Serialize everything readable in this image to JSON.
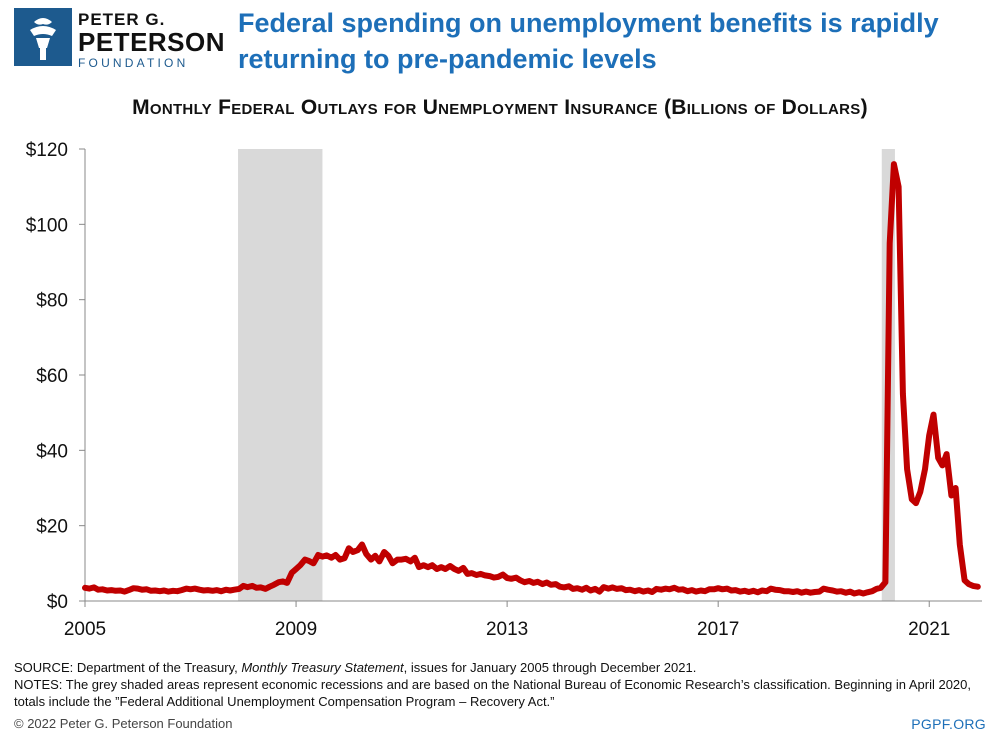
{
  "logo": {
    "line1": "PETER G.",
    "line2": "PETERSON",
    "line3": "FOUNDATION",
    "icon": "torch-icon",
    "color": "#1d5a8e"
  },
  "headline": "Federal spending on unemployment benefits is rapidly returning to pre-pandemic levels",
  "chart_data": {
    "type": "line",
    "title": "Monthly Federal Outlays for Unemployment Insurance (Billions of Dollars)",
    "xlabel": "",
    "ylabel": "",
    "xlim": [
      2005.0,
      2022.0
    ],
    "ylim": [
      0,
      120
    ],
    "x_ticks": [
      2005,
      2009,
      2013,
      2017,
      2021
    ],
    "y_ticks": [
      0,
      20,
      40,
      60,
      80,
      100,
      120
    ],
    "y_tick_labels": [
      "$0",
      "$20",
      "$40",
      "$60",
      "$80",
      "$100",
      "$120"
    ],
    "grid": false,
    "line_color": "#c00000",
    "shading_color": "#d9d9d9",
    "recessions": [
      [
        2007.9,
        2009.5
      ],
      [
        2020.1,
        2020.35
      ]
    ],
    "series": [
      {
        "x": [
          2005.0,
          2005.08,
          2005.17,
          2005.25,
          2005.33,
          2005.42,
          2005.5,
          2005.58,
          2005.67,
          2005.75,
          2005.83,
          2005.92,
          2006.0,
          2006.08,
          2006.17,
          2006.25,
          2006.33,
          2006.42,
          2006.5,
          2006.58,
          2006.67,
          2006.75,
          2006.83,
          2006.92,
          2007.0,
          2007.08,
          2007.17,
          2007.25,
          2007.33,
          2007.42,
          2007.5,
          2007.58,
          2007.67,
          2007.75,
          2007.83,
          2007.92,
          2008.0,
          2008.08,
          2008.17,
          2008.25,
          2008.33,
          2008.42,
          2008.5,
          2008.58,
          2008.67,
          2008.75,
          2008.83,
          2008.92,
          2009.0,
          2009.08,
          2009.17,
          2009.25,
          2009.33,
          2009.42,
          2009.5,
          2009.58,
          2009.67,
          2009.75,
          2009.83,
          2009.92,
          2010.0,
          2010.08,
          2010.17,
          2010.25,
          2010.33,
          2010.42,
          2010.5,
          2010.58,
          2010.67,
          2010.75,
          2010.83,
          2010.92,
          2011.0,
          2011.08,
          2011.17,
          2011.25,
          2011.33,
          2011.42,
          2011.5,
          2011.58,
          2011.67,
          2011.75,
          2011.83,
          2011.92,
          2012.0,
          2012.08,
          2012.17,
          2012.25,
          2012.33,
          2012.42,
          2012.5,
          2012.58,
          2012.67,
          2012.75,
          2012.83,
          2012.92,
          2013.0,
          2013.08,
          2013.17,
          2013.25,
          2013.33,
          2013.42,
          2013.5,
          2013.58,
          2013.67,
          2013.75,
          2013.83,
          2013.92,
          2014.0,
          2014.08,
          2014.17,
          2014.25,
          2014.33,
          2014.42,
          2014.5,
          2014.58,
          2014.67,
          2014.75,
          2014.83,
          2014.92,
          2015.0,
          2015.08,
          2015.17,
          2015.25,
          2015.33,
          2015.42,
          2015.5,
          2015.58,
          2015.67,
          2015.75,
          2015.83,
          2015.92,
          2016.0,
          2016.08,
          2016.17,
          2016.25,
          2016.33,
          2016.42,
          2016.5,
          2016.58,
          2016.67,
          2016.75,
          2016.83,
          2016.92,
          2017.0,
          2017.08,
          2017.17,
          2017.25,
          2017.33,
          2017.42,
          2017.5,
          2017.58,
          2017.67,
          2017.75,
          2017.83,
          2017.92,
          2018.0,
          2018.08,
          2018.17,
          2018.25,
          2018.33,
          2018.42,
          2018.5,
          2018.58,
          2018.67,
          2018.75,
          2018.83,
          2018.92,
          2019.0,
          2019.08,
          2019.17,
          2019.25,
          2019.33,
          2019.42,
          2019.5,
          2019.58,
          2019.67,
          2019.75,
          2019.83,
          2019.92,
          2020.0,
          2020.08,
          2020.17,
          2020.25,
          2020.33,
          2020.42,
          2020.5,
          2020.58,
          2020.67,
          2020.75,
          2020.83,
          2020.92,
          2021.0,
          2021.08,
          2021.17,
          2021.25,
          2021.33,
          2021.42,
          2021.5,
          2021.58,
          2021.67,
          2021.75,
          2021.83,
          2021.92
        ],
        "y": [
          3.5,
          3.3,
          3.6,
          3.0,
          3.1,
          2.8,
          2.9,
          2.7,
          2.8,
          2.5,
          2.9,
          3.4,
          3.3,
          3.0,
          3.1,
          2.7,
          2.8,
          2.6,
          2.8,
          2.5,
          2.7,
          2.6,
          2.9,
          3.3,
          3.1,
          3.3,
          3.0,
          2.8,
          2.9,
          2.7,
          2.9,
          2.6,
          3.0,
          2.8,
          3.0,
          3.2,
          4.0,
          3.7,
          4.0,
          3.5,
          3.6,
          3.2,
          3.8,
          4.3,
          5.0,
          5.2,
          4.8,
          7.5,
          8.5,
          9.5,
          11.0,
          10.6,
          10.0,
          12.2,
          11.8,
          12.1,
          11.5,
          12.2,
          11.0,
          11.4,
          14.0,
          13.0,
          13.5,
          15.0,
          12.5,
          11.0,
          12.0,
          10.5,
          13.0,
          12.0,
          10.0,
          11.0,
          11.0,
          11.2,
          10.5,
          11.5,
          9.0,
          9.5,
          9.0,
          9.5,
          8.5,
          9.0,
          8.5,
          9.3,
          8.5,
          8.0,
          8.8,
          7.2,
          7.4,
          6.9,
          7.2,
          6.8,
          6.6,
          6.2,
          6.4,
          7.0,
          6.1,
          5.9,
          6.2,
          5.5,
          5.0,
          5.3,
          4.8,
          5.1,
          4.5,
          4.9,
          4.3,
          4.5,
          3.8,
          3.6,
          3.9,
          3.2,
          3.4,
          3.0,
          3.5,
          2.8,
          3.2,
          2.5,
          3.7,
          3.3,
          3.6,
          3.2,
          3.4,
          2.9,
          3.0,
          2.6,
          2.9,
          2.5,
          2.8,
          2.4,
          3.2,
          3.0,
          3.3,
          3.1,
          3.5,
          3.0,
          3.1,
          2.6,
          2.9,
          2.5,
          2.8,
          2.6,
          3.1,
          3.1,
          3.4,
          3.1,
          3.3,
          2.8,
          2.9,
          2.5,
          2.7,
          2.4,
          2.7,
          2.3,
          2.8,
          2.6,
          3.3,
          3.0,
          2.9,
          2.6,
          2.6,
          2.4,
          2.6,
          2.2,
          2.5,
          2.2,
          2.4,
          2.5,
          3.3,
          3.0,
          2.8,
          2.5,
          2.6,
          2.2,
          2.5,
          2.0,
          2.3,
          2.0,
          2.3,
          2.6,
          3.2,
          3.5,
          5.0,
          95.0,
          116.0,
          110.0,
          55.0,
          35.0,
          27.0,
          26.0,
          29.0,
          35.0,
          44.0,
          49.5,
          38.0,
          36.0,
          39.0,
          28.0,
          30.0,
          15.0,
          5.5,
          4.5,
          4.0,
          3.8
        ]
      }
    ]
  },
  "notes": {
    "source_prefix": "SOURCE: Department of the Treasury, ",
    "source_italic": "Monthly Treasury Statement",
    "source_suffix": ", issues for January 2005 through December 2021.",
    "notes_text": "NOTES: The grey shaded areas represent economic recessions and are based on the National Bureau of Economic Research’s classification. Beginning in April 2020, totals include the ”Federal Additional Unemployment Compensation Program – Recovery Act.”"
  },
  "footer": {
    "copyright": "© 2022 Peter G. Peterson Foundation",
    "site": "PGPF.ORG"
  }
}
